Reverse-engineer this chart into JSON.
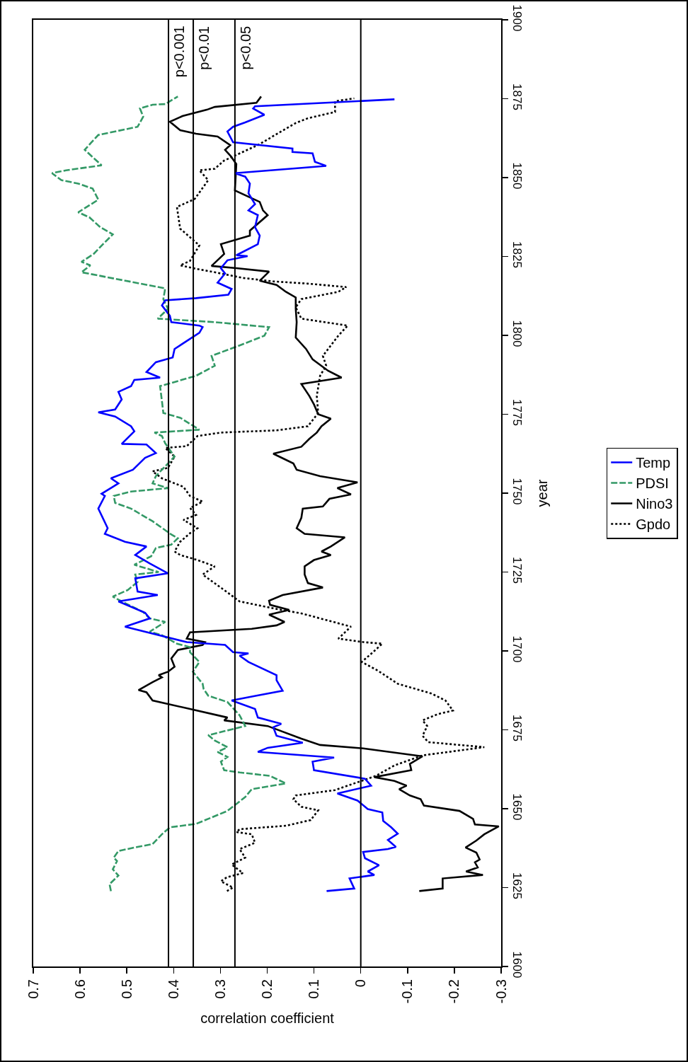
{
  "chart_data": {
    "type": "line",
    "xlabel": "correlation coefficient",
    "ylabel": "year",
    "xlim": [
      0.7,
      -0.3
    ],
    "xticks": [
      0.7,
      0.6,
      0.5,
      0.4,
      0.3,
      0.2,
      0.1,
      0,
      -0.1,
      -0.2,
      -0.3
    ],
    "ylim": [
      1600,
      1900
    ],
    "yticks": [
      1600,
      1625,
      1650,
      1675,
      1700,
      1725,
      1750,
      1775,
      1800,
      1825,
      1850,
      1875,
      1900
    ],
    "legend": "right",
    "grid": false,
    "ref_lines": [
      {
        "axis": "x",
        "value": 0.411,
        "label": "p<0.001",
        "color": "#000000"
      },
      {
        "axis": "x",
        "value": 0.358,
        "label": "p<0.01",
        "color": "#000000"
      },
      {
        "axis": "x",
        "value": 0.269,
        "label": "p<0.05",
        "color": "#000000"
      },
      {
        "axis": "x",
        "value": 0,
        "label": null,
        "color": "#000000"
      }
    ],
    "series": [
      {
        "name": "Gpdo",
        "color": "#000000",
        "line_style": "dotted",
        "values": [
          1623.9,
          1625.0,
          1627.0,
          1628.3,
          1629.6,
          1632.3,
          1634.5,
          1637.2,
          1639.2,
          1641.9,
          1642.6,
          1643.5,
          1644.6,
          1646.4,
          1649.5,
          1650.6,
          1653.0,
          1654.2,
          1655.9,
          1660.4,
          1663.7,
          1666.9,
          1669.5,
          1671.1,
          1673.1,
          1676.2,
          1678.0,
          1680.0,
          1681.1,
          1684.3,
          1686.5,
          1689.6,
          1693.8,
          1696.5,
          1699.6,
          1702.3,
          1702.8,
          1703.9,
          1707.7,
          1711.9,
          1713.5,
          1715.7,
          1719.3,
          1724.2,
          1726.8,
          1728.8,
          1730.4,
          1731.5,
          1734.6,
          1737.3,
          1738.9,
          1741.5,
          1743.1,
          1745.3,
          1747.3,
          1749.1,
          1752.0,
          1754.7,
          1756.9,
          1758.0,
          1761.6,
          1764.3,
          1764.9,
          1768.1,
          1769.2,
          1769.9,
          1771.2,
          1775.4,
          1780.8,
          1787.2,
          1790.4,
          1793.5,
          1799.9,
          1803.1,
          1804.4,
          1805.3,
          1808.9,
          1811.5,
          1813.8,
          1815.3,
          1816.4,
          1817.1,
          1818.2,
          1820.0,
          1821.1,
          1822.2,
          1823.6,
          1828.5,
          1831.1,
          1833.8,
          1840.7,
          1843.2,
          1849.2,
          1852.3,
          1852.8,
          1855.4,
          1860.3,
          1867.3,
          1868.8,
          1870.8,
          1874.2,
          1875.1
        ],
        "x": [
          0.286,
          0.273,
          0.299,
          0.286,
          0.252,
          0.276,
          0.247,
          0.259,
          0.226,
          0.233,
          0.266,
          0.259,
          0.16,
          0.107,
          0.091,
          0.127,
          0.144,
          0.139,
          0.055,
          -0.032,
          -0.072,
          -0.132,
          -0.264,
          -0.144,
          -0.132,
          -0.142,
          -0.132,
          -0.165,
          -0.197,
          -0.181,
          -0.151,
          -0.079,
          -0.036,
          -0.002,
          -0.026,
          -0.046,
          -0.005,
          0.048,
          0.021,
          0.127,
          0.187,
          0.259,
          0.292,
          0.338,
          0.312,
          0.349,
          0.386,
          0.398,
          0.386,
          0.365,
          0.349,
          0.379,
          0.352,
          0.365,
          0.338,
          0.365,
          0.379,
          0.425,
          0.445,
          0.412,
          0.398,
          0.418,
          0.372,
          0.349,
          0.299,
          0.18,
          0.113,
          0.091,
          0.094,
          0.087,
          0.074,
          0.081,
          0.048,
          0.028,
          0.087,
          0.127,
          0.139,
          0.127,
          0.048,
          0.031,
          0.113,
          0.187,
          0.252,
          0.312,
          0.352,
          0.386,
          0.365,
          0.345,
          0.365,
          0.386,
          0.393,
          0.355,
          0.326,
          0.345,
          0.312,
          0.292,
          0.22,
          0.139,
          0.113,
          0.055,
          0.055,
          0.014
        ]
      },
      {
        "name": "Nino3",
        "color": "#000000",
        "line_style": "solid",
        "values": [
          1623.9,
          1624.7,
          1627.9,
          1629.0,
          1630.1,
          1631.4,
          1633.0,
          1633.9,
          1636.1,
          1637.7,
          1639.9,
          1641.9,
          1644.4,
          1645.0,
          1646.8,
          1649.3,
          1651.0,
          1653.0,
          1654.2,
          1656.2,
          1657.3,
          1658.8,
          1660.0,
          1662.2,
          1664.2,
          1666.6,
          1669.1,
          1670.2,
          1672.2,
          1676.2,
          1678.0,
          1678.9,
          1681.6,
          1684.3,
          1686.9,
          1687.6,
          1690.1,
          1691.6,
          1692.3,
          1693.4,
          1695.0,
          1697.6,
          1700.3,
          1701.9,
          1702.8,
          1703.9,
          1705.9,
          1707.0,
          1708.1,
          1709.2,
          1711.5,
          1713.0,
          1714.6,
          1715.9,
          1717.7,
          1720.1,
          1721.5,
          1724.2,
          1726.8,
          1728.8,
          1730.4,
          1731.5,
          1733.1,
          1736.0,
          1737.1,
          1738.9,
          1742.2,
          1745.1,
          1745.8,
          1748.2,
          1749.6,
          1751.6,
          1753.4,
          1755.4,
          1757.4,
          1759.4,
          1762.5,
          1764.7,
          1767.2,
          1769.2,
          1771.2,
          1773.6,
          1775.0,
          1778.1,
          1780.8,
          1784.6,
          1786.6,
          1788.8,
          1792.4,
          1795.7,
          1799.3,
          1804.2,
          1808.4,
          1812.0,
          1813.8,
          1816.0,
          1817.3,
          1820.2,
          1821.3,
          1822.0,
          1825.8,
          1828.9,
          1831.6,
          1833.2,
          1838.1,
          1839.6,
          1842.3,
          1845.9,
          1854.3,
          1857.0,
          1858.8,
          1860.3,
          1863.0,
          1863.9,
          1865.0,
          1867.7,
          1869.5,
          1871.5,
          1872.4,
          1873.7,
          1875.7
        ],
        "x": [
          -0.125,
          -0.175,
          -0.175,
          -0.261,
          -0.225,
          -0.25,
          -0.244,
          -0.254,
          -0.247,
          -0.224,
          -0.247,
          -0.264,
          -0.295,
          -0.244,
          -0.24,
          -0.211,
          -0.135,
          -0.128,
          -0.105,
          -0.082,
          -0.098,
          -0.072,
          -0.029,
          -0.108,
          -0.105,
          -0.132,
          -0.005,
          0.087,
          0.127,
          0.199,
          0.292,
          0.285,
          0.365,
          0.445,
          0.458,
          0.475,
          0.445,
          0.425,
          0.432,
          0.412,
          0.398,
          0.405,
          0.391,
          0.338,
          0.333,
          0.372,
          0.365,
          0.233,
          0.18,
          0.163,
          0.196,
          0.153,
          0.194,
          0.196,
          0.167,
          0.081,
          0.113,
          0.12,
          0.12,
          0.1,
          0.064,
          0.084,
          0.064,
          0.034,
          0.12,
          0.137,
          0.127,
          0.124,
          0.081,
          0.067,
          0.021,
          0.05,
          0.007,
          0.087,
          0.137,
          0.144,
          0.187,
          0.127,
          0.11,
          0.094,
          0.084,
          0.064,
          0.091,
          0.1,
          0.11,
          0.127,
          0.041,
          0.07,
          0.103,
          0.117,
          0.139,
          0.137,
          0.139,
          0.139,
          0.16,
          0.18,
          0.216,
          0.196,
          0.266,
          0.319,
          0.292,
          0.299,
          0.237,
          0.237,
          0.199,
          0.209,
          0.216,
          0.269,
          0.266,
          0.279,
          0.29,
          0.279,
          0.306,
          0.352,
          0.386,
          0.408,
          0.381,
          0.329,
          0.312,
          0.223,
          0.213
        ]
      },
      {
        "name": "PDSI",
        "color": "#339966",
        "line_style": "dashed",
        "values": [
          1623.9,
          1626.1,
          1628.8,
          1630.8,
          1633.4,
          1634.5,
          1636.6,
          1637.9,
          1638.8,
          1641.9,
          1644.1,
          1645.2,
          1649.3,
          1653.7,
          1656.2,
          1658.0,
          1660.4,
          1661.5,
          1662.2,
          1664.9,
          1666.4,
          1668.0,
          1669.5,
          1671.6,
          1673.3,
          1676.2,
          1679.6,
          1683.8,
          1685.8,
          1688.0,
          1689.6,
          1693.4,
          1696.5,
          1699.6,
          1701.2,
          1702.3,
          1705.0,
          1706.1,
          1709.2,
          1710.3,
          1712.3,
          1715.7,
          1717.2,
          1719.3,
          1721.9,
          1724.2,
          1725.0,
          1727.3,
          1730.0,
          1732.6,
          1733.7,
          1735.7,
          1736.9,
          1741.1,
          1745.1,
          1746.9,
          1749.1,
          1750.5,
          1751.6,
          1753.1,
          1755.4,
          1761.6,
          1765.8,
          1768.1,
          1769.2,
          1770.1,
          1773.9,
          1775.4,
          1779.2,
          1783.9,
          1787.2,
          1790.4,
          1793.5,
          1796.8,
          1799.9,
          1802.6,
          1804.2,
          1805.3,
          1808.4,
          1811.5,
          1814.9,
          1820.0,
          1822.2,
          1823.3,
          1825.8,
          1828.9,
          1832.0,
          1834.3,
          1837.4,
          1839.0,
          1843.0,
          1846.5,
          1848.1,
          1849.2,
          1851.4,
          1852.3,
          1853.9,
          1858.8,
          1860.8,
          1863.5,
          1866.1,
          1869.3,
          1871.9,
          1873.1,
          1873.3,
          1875.7
        ],
        "x": [
          0.534,
          0.537,
          0.518,
          0.53,
          0.521,
          0.528,
          0.518,
          0.477,
          0.445,
          0.425,
          0.408,
          0.352,
          0.285,
          0.247,
          0.233,
          0.16,
          0.194,
          0.259,
          0.292,
          0.299,
          0.285,
          0.306,
          0.285,
          0.312,
          0.326,
          0.247,
          0.259,
          0.285,
          0.326,
          0.336,
          0.338,
          0.359,
          0.345,
          0.365,
          0.365,
          0.393,
          0.425,
          0.451,
          0.418,
          0.451,
          0.465,
          0.511,
          0.53,
          0.498,
          0.477,
          0.482,
          0.432,
          0.484,
          0.448,
          0.438,
          0.405,
          0.391,
          0.405,
          0.445,
          0.491,
          0.525,
          0.528,
          0.491,
          0.412,
          0.445,
          0.438,
          0.398,
          0.418,
          0.425,
          0.441,
          0.345,
          0.386,
          0.422,
          0.425,
          0.429,
          0.352,
          0.312,
          0.319,
          0.259,
          0.206,
          0.196,
          0.312,
          0.434,
          0.412,
          0.422,
          0.418,
          0.597,
          0.578,
          0.597,
          0.571,
          0.551,
          0.53,
          0.557,
          0.58,
          0.604,
          0.561,
          0.573,
          0.604,
          0.64,
          0.66,
          0.63,
          0.554,
          0.59,
          0.578,
          0.561,
          0.477,
          0.465,
          0.472,
          0.445,
          0.418,
          0.391
        ]
      },
      {
        "name": "Temp",
        "color": "#0000ff",
        "line_style": "solid",
        "values": [
          1623.9,
          1624.7,
          1627.9,
          1629.0,
          1630.1,
          1632.1,
          1634.3,
          1636.3,
          1637.2,
          1637.9,
          1640.1,
          1642.1,
          1644.1,
          1646.1,
          1648.8,
          1649.9,
          1652.6,
          1654.8,
          1657.3,
          1659.5,
          1662.2,
          1664.9,
          1666.2,
          1668.0,
          1669.3,
          1670.9,
          1673.1,
          1675.8,
          1676.9,
          1678.9,
          1681.6,
          1684.3,
          1685.8,
          1687.4,
          1690.7,
          1692.3,
          1696.5,
          1698.5,
          1699.2,
          1699.6,
          1701.9,
          1702.8,
          1707.7,
          1710.3,
          1712.1,
          1715.7,
          1717.7,
          1718.8,
          1723.0,
          1724.6,
          1727.7,
          1730.4,
          1733.1,
          1734.6,
          1737.1,
          1738.9,
          1745.1,
          1749.1,
          1749.8,
          1752.0,
          1753.1,
          1754.7,
          1757.4,
          1761.2,
          1762.7,
          1765.4,
          1765.6,
          1769.6,
          1771.2,
          1774.3,
          1775.6,
          1776.5,
          1779.7,
          1782.1,
          1783.9,
          1785.9,
          1786.6,
          1788.4,
          1791.5,
          1793.0,
          1795.7,
          1800.8,
          1802.6,
          1803.1,
          1804.2,
          1806.2,
          1809.5,
          1811.1,
          1811.8,
          1812.9,
          1814.7,
          1816.7,
          1819.6,
          1821.3,
          1823.8,
          1825.1,
          1825.4,
          1828.9,
          1831.6,
          1834.3,
          1838.1,
          1839.6,
          1841.6,
          1845.0,
          1848.1,
          1850.3,
          1851.4,
          1853.7,
          1855.0,
          1857.7,
          1858.1,
          1859.2,
          1861.2,
          1864.6,
          1866.1,
          1867.5,
          1869.9,
          1871.9,
          1872.6,
          1874.8
        ],
        "x": [
          0.073,
          0.014,
          0.024,
          -0.029,
          -0.015,
          -0.039,
          -0.009,
          -0.005,
          -0.058,
          -0.075,
          -0.058,
          -0.079,
          -0.065,
          -0.048,
          -0.046,
          -0.015,
          0.007,
          0.05,
          -0.022,
          -0.009,
          0.1,
          0.103,
          0.057,
          0.22,
          0.199,
          0.124,
          0.18,
          0.187,
          0.17,
          0.22,
          0.226,
          0.276,
          0.223,
          0.167,
          0.18,
          0.18,
          0.24,
          0.259,
          0.24,
          0.273,
          0.29,
          0.372,
          0.504,
          0.451,
          0.461,
          0.518,
          0.434,
          0.477,
          0.482,
          0.412,
          0.451,
          0.482,
          0.458,
          0.504,
          0.547,
          0.541,
          0.561,
          0.547,
          0.554,
          0.53,
          0.518,
          0.534,
          0.487,
          0.461,
          0.438,
          0.458,
          0.511,
          0.484,
          0.491,
          0.525,
          0.561,
          0.525,
          0.511,
          0.518,
          0.491,
          0.484,
          0.429,
          0.458,
          0.438,
          0.402,
          0.398,
          0.345,
          0.338,
          0.345,
          0.405,
          0.408,
          0.425,
          0.418,
          0.352,
          0.283,
          0.276,
          0.306,
          0.29,
          0.299,
          0.285,
          0.242,
          0.266,
          0.22,
          0.216,
          0.226,
          0.22,
          0.24,
          0.226,
          0.24,
          0.237,
          0.247,
          0.269,
          0.074,
          0.098,
          0.103,
          0.146,
          0.146,
          0.273,
          0.285,
          0.273,
          0.247,
          0.206,
          0.23,
          0.226,
          -0.072
        ]
      }
    ]
  }
}
